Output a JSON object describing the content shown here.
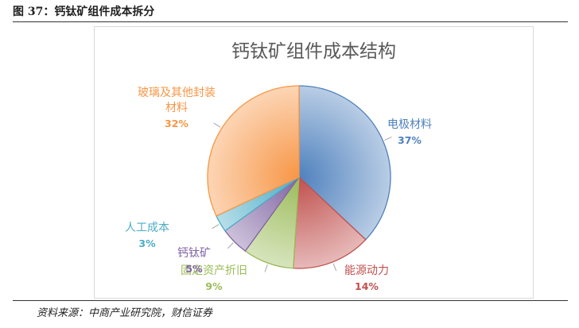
{
  "figure": {
    "caption": "图 37：钙钛矿组件成本拆分",
    "source": "资料来源：中商产业研究院，财信证券"
  },
  "chart_data": {
    "type": "pie",
    "title": "钙钛矿组件成本结构",
    "slices": [
      {
        "label": "电极材料",
        "pct_label": "37%",
        "value": 37,
        "color": "#4f81bd",
        "light": "#b9cde5"
      },
      {
        "label": "能源动力",
        "pct_label": "14%",
        "value": 14,
        "color": "#c0504d",
        "light": "#e6b9b8"
      },
      {
        "label": "固定资产折旧",
        "pct_label": "9%",
        "value": 9,
        "color": "#9bbb59",
        "light": "#d7e4bd"
      },
      {
        "label": "钙钛矿",
        "pct_label": "5%",
        "value": 5,
        "color": "#8064a2",
        "light": "#ccc1da"
      },
      {
        "label": "人工成本",
        "pct_label": "3%",
        "value": 3,
        "color": "#4bacc6",
        "light": "#b7dee8"
      },
      {
        "label": "玻璃及其他封装材料",
        "pct_label": "32%",
        "value": 32,
        "color": "#f79646",
        "light": "#fcd5b5"
      }
    ]
  }
}
